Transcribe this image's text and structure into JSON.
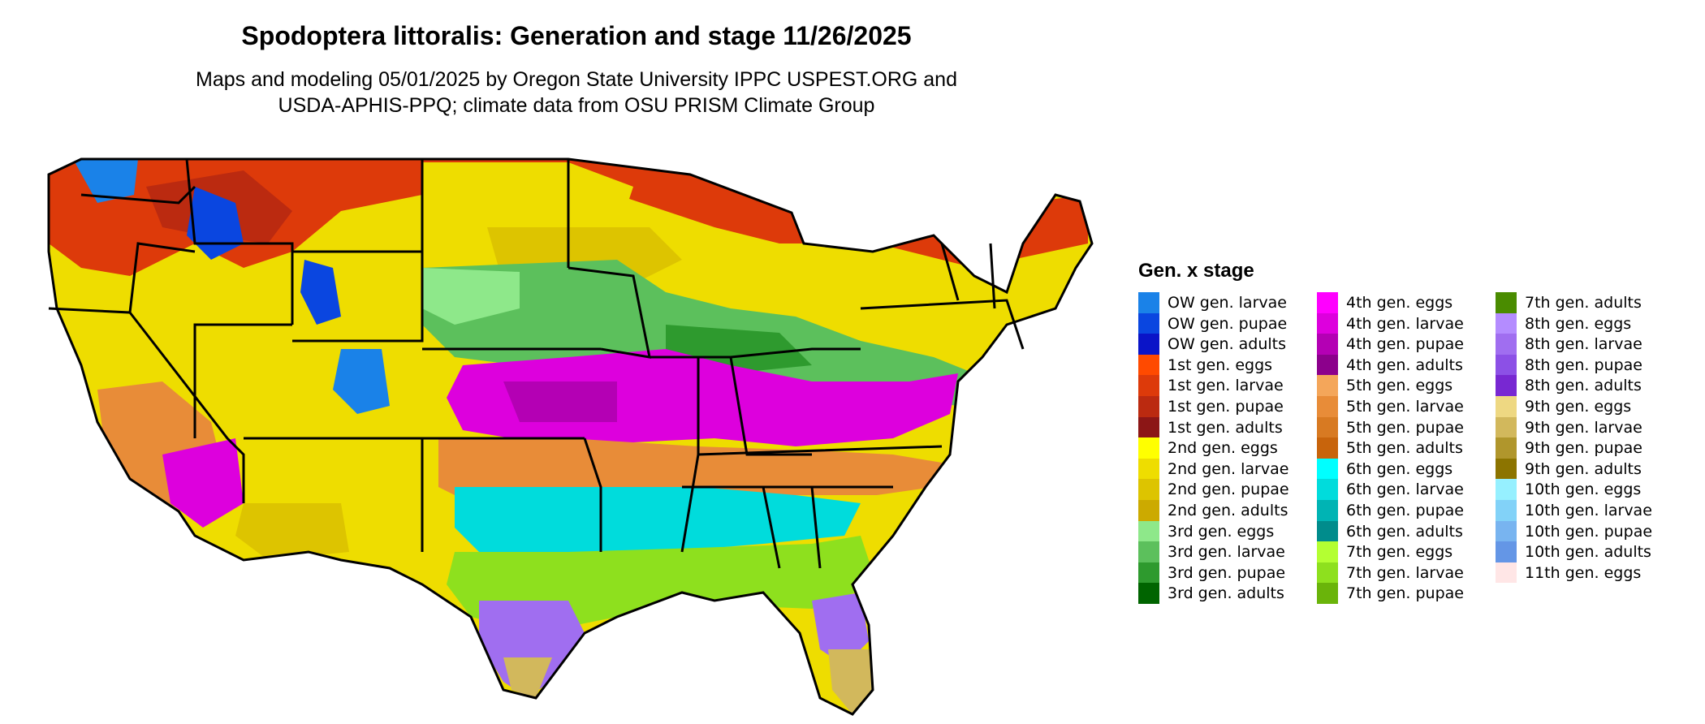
{
  "title": "Spodoptera littoralis: Generation and stage 11/26/2025",
  "subtitle_line1": "Maps and modeling 05/01/2025 by Oregon State University IPPC USPEST.ORG and",
  "subtitle_line2": "USDA-APHIS-PPQ; climate data from OSU PRISM Climate Group",
  "legend": {
    "title": "Gen. x stage",
    "columns": [
      [
        {
          "label": "OW gen. larvae",
          "color": "#1a82e8"
        },
        {
          "label": "OW gen. pupae",
          "color": "#0a46e0"
        },
        {
          "label": "OW gen. adults",
          "color": "#0a14c8"
        },
        {
          "label": "1st gen. eggs",
          "color": "#ff4a00"
        },
        {
          "label": "1st gen. larvae",
          "color": "#dd3a0a"
        },
        {
          "label": "1st gen. pupae",
          "color": "#bb2a10"
        },
        {
          "label": "1st gen. adults",
          "color": "#8c1616"
        },
        {
          "label": "2nd gen. eggs",
          "color": "#ffff00"
        },
        {
          "label": "2nd gen. larvae",
          "color": "#eedd00"
        },
        {
          "label": "2nd gen. pupae",
          "color": "#ddc400"
        },
        {
          "label": "2nd gen. adults",
          "color": "#ccaa00"
        },
        {
          "label": "3rd gen. eggs",
          "color": "#8ee88a"
        },
        {
          "label": "3rd gen. larvae",
          "color": "#5cc05c"
        },
        {
          "label": "3rd gen. pupae",
          "color": "#2e9a2e"
        },
        {
          "label": "3rd gen. adults",
          "color": "#006400"
        }
      ],
      [
        {
          "label": "4th gen. eggs",
          "color": "#ff00ff"
        },
        {
          "label": "4th gen. larvae",
          "color": "#dd00dd"
        },
        {
          "label": "4th gen. pupae",
          "color": "#b400b4"
        },
        {
          "label": "4th gen. adults",
          "color": "#8c008c"
        },
        {
          "label": "5th gen. eggs",
          "color": "#f4a65a"
        },
        {
          "label": "5th gen. larvae",
          "color": "#e88c38"
        },
        {
          "label": "5th gen. pupae",
          "color": "#d87a22"
        },
        {
          "label": "5th gen. adults",
          "color": "#c8640c"
        },
        {
          "label": "6th gen. eggs",
          "color": "#00ffff"
        },
        {
          "label": "6th gen. larvae",
          "color": "#00dcdc"
        },
        {
          "label": "6th gen. pupae",
          "color": "#00b4b4"
        },
        {
          "label": "6th gen. adults",
          "color": "#008c8c"
        },
        {
          "label": "7th gen. eggs",
          "color": "#b4ff32"
        },
        {
          "label": "7th gen. larvae",
          "color": "#8ee01e"
        },
        {
          "label": "7th gen. pupae",
          "color": "#6ab40a"
        }
      ],
      [
        {
          "label": "7th gen. adults",
          "color": "#4a8c00"
        },
        {
          "label": "8th gen. eggs",
          "color": "#b48cff"
        },
        {
          "label": "8th gen. larvae",
          "color": "#a06ef0"
        },
        {
          "label": "8th gen. pupae",
          "color": "#8c50e6"
        },
        {
          "label": "8th gen. adults",
          "color": "#7828d2"
        },
        {
          "label": "9th gen. eggs",
          "color": "#eed882"
        },
        {
          "label": "9th gen. larvae",
          "color": "#d2b85c"
        },
        {
          "label": "9th gen. pupae",
          "color": "#b0962c"
        },
        {
          "label": "9th gen. adults",
          "color": "#8c7400"
        },
        {
          "label": "10th gen. eggs",
          "color": "#96f0ff"
        },
        {
          "label": "10th gen. larvae",
          "color": "#82d2f8"
        },
        {
          "label": "10th gen. pupae",
          "color": "#78b4f0"
        },
        {
          "label": "10th gen. adults",
          "color": "#6496e6"
        },
        {
          "label": "11th gen. eggs",
          "color": "#ffe6e6"
        }
      ]
    ]
  }
}
